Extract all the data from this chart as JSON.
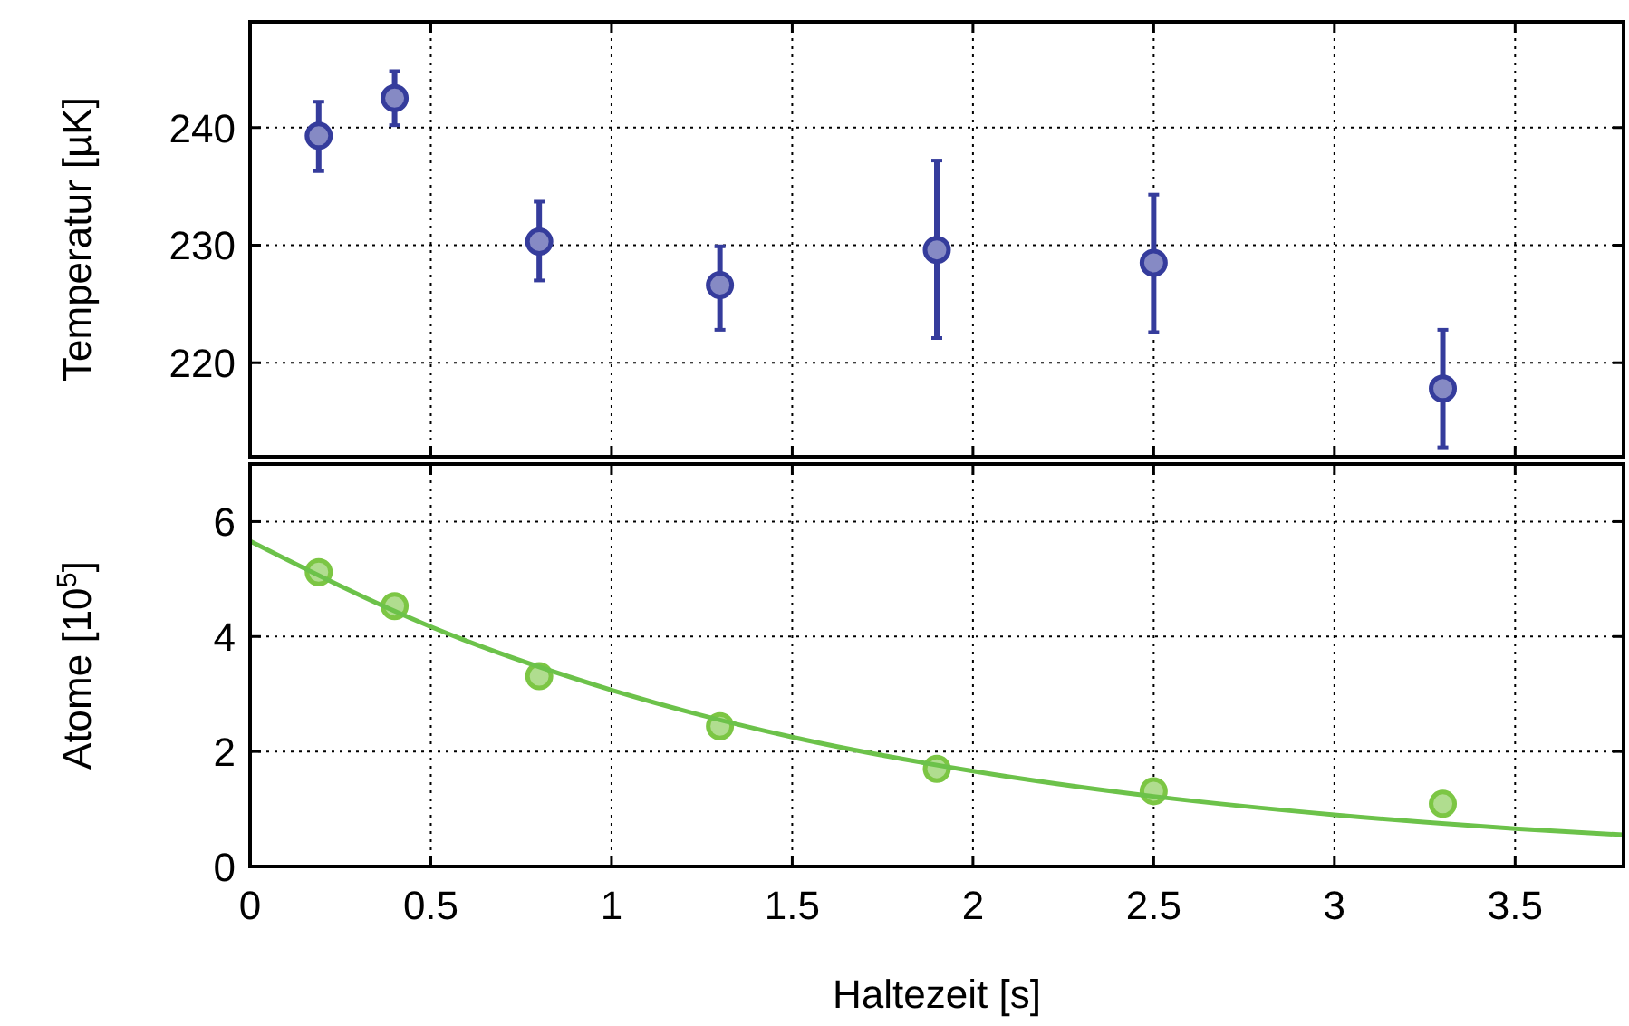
{
  "chart_data": [
    {
      "type": "scatter",
      "ylabel": "Temperatur [µK]",
      "x": [
        0.19,
        0.4,
        0.8,
        1.3,
        1.9,
        2.5,
        3.3
      ],
      "xlim": [
        0,
        3.8
      ],
      "xticks": [
        0,
        0.5,
        1,
        1.5,
        2,
        2.5,
        3,
        3.5
      ],
      "ylim": [
        212,
        249
      ],
      "yticks": [
        220,
        230,
        240
      ],
      "tick_labels": "y",
      "grid": true,
      "marker": "circle",
      "series": [
        {
          "color": "#353c9c",
          "values": [
            239.3,
            242.5,
            230.3,
            226.6,
            229.6,
            228.5,
            217.8
          ],
          "errors": [
            [
              236.3,
              242.2
            ],
            [
              240.2,
              244.8
            ],
            [
              227.0,
              233.7
            ],
            [
              222.8,
              229.9
            ],
            [
              222.1,
              237.2
            ],
            [
              222.6,
              234.3
            ],
            [
              212.8,
              222.8
            ]
          ]
        }
      ]
    },
    {
      "type": "scatter",
      "xlabel": "Haltezeit [s]",
      "ylabel": "Atome [10$^{5}$]",
      "xlim": [
        0,
        3.8
      ],
      "xticks": [
        0,
        0.5,
        1,
        1.5,
        2,
        2.5,
        3,
        3.5
      ],
      "ylim": [
        0,
        7
      ],
      "yticks": [
        0,
        2,
        4,
        6
      ],
      "grid": true,
      "series": [
        {
          "marker": "circle",
          "color": "#7cc644",
          "x": [
            0.19,
            0.4,
            0.8,
            1.3,
            1.9,
            2.5,
            3.3
          ],
          "values": [
            5.12,
            4.53,
            3.31,
            2.44,
            1.7,
            1.31,
            1.09
          ]
        },
        {
          "type": "line",
          "marker": "none",
          "color": "#6cc24a",
          "x": [
            0,
            0.5,
            1,
            1.5,
            2,
            2.5,
            3,
            3.5,
            3.8
          ],
          "values": [
            5.66,
            4.17,
            3.07,
            2.25,
            1.66,
            1.22,
            0.9,
            0.66,
            0.55
          ]
        }
      ]
    }
  ]
}
